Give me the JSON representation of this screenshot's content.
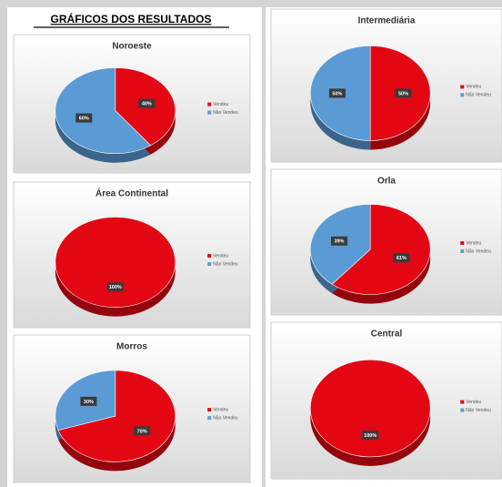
{
  "header": {
    "title": "GRÁFICOS DOS RESULTADOS"
  },
  "chart_data": [
    {
      "type": "pie",
      "title": "Noroeste",
      "categories": [
        "Vendeu",
        "Não Vendeu"
      ],
      "colors": [
        "#e30613",
        "#5b9bd5"
      ],
      "values": [
        40,
        60
      ],
      "value_labels": [
        "40%",
        "60%"
      ]
    },
    {
      "type": "pie",
      "title": "Área Continental",
      "categories": [
        "Vendeu",
        "Não Vendeu"
      ],
      "colors": [
        "#e30613",
        "#5b9bd5"
      ],
      "values": [
        100,
        0
      ],
      "value_labels": [
        "100%",
        null
      ]
    },
    {
      "type": "pie",
      "title": "Morros",
      "categories": [
        "Vendeu",
        "Não Vendeu"
      ],
      "colors": [
        "#e30613",
        "#5b9bd5"
      ],
      "values": [
        70,
        30
      ],
      "value_labels": [
        "70%",
        "30%"
      ]
    },
    {
      "type": "pie",
      "title": "Intermediária",
      "categories": [
        "Vendeu",
        "Não Vendeu"
      ],
      "colors": [
        "#e30613",
        "#5b9bd5"
      ],
      "values": [
        50,
        50
      ],
      "value_labels": [
        "50%",
        "50%"
      ]
    },
    {
      "type": "pie",
      "title": "Orla",
      "categories": [
        "Vendeu",
        "Não Vendeu"
      ],
      "colors": [
        "#e30613",
        "#5b9bd5"
      ],
      "values": [
        61,
        39
      ],
      "value_labels": [
        "61%",
        "39%"
      ]
    },
    {
      "type": "pie",
      "title": "Central",
      "categories": [
        "Vendeu",
        "Não Vendeu"
      ],
      "colors": [
        "#e30613",
        "#5b9bd5"
      ],
      "values": [
        100,
        0
      ],
      "value_labels": [
        "100%",
        null
      ]
    }
  ]
}
